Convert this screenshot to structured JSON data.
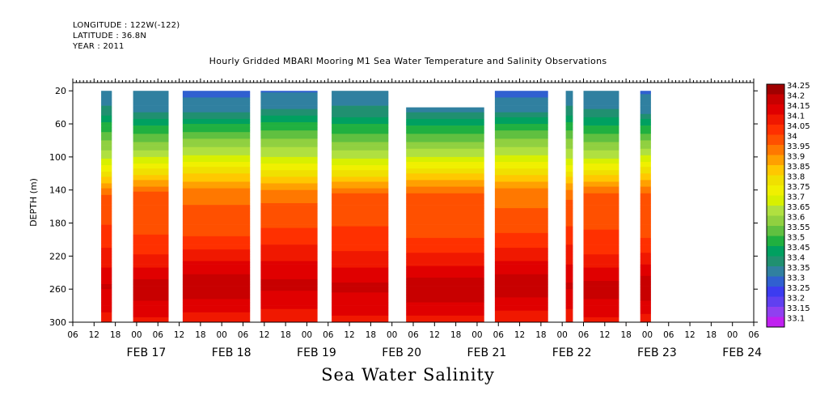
{
  "meta": {
    "longitude": "LONGITUDE : 122W(-122)",
    "latitude": "LATITUDE : 36.8N",
    "year": "YEAR : 2011"
  },
  "title": "Hourly Gridded MBARI Mooring M1 Sea Water Temperature and Salinity Observations",
  "bottom_title": "Sea Water Salinity",
  "chart_data": {
    "type": "heatmap",
    "title": "Hourly Gridded MBARI Mooring M1 Sea Water Temperature and Salinity Observations",
    "subtitle": "Sea Water Salinity",
    "xlabel": "",
    "ylabel": "DEPTH (m)",
    "y_range": [
      300,
      10
    ],
    "y_ticks": [
      20,
      60,
      100,
      140,
      180,
      220,
      260,
      300
    ],
    "x_range_hours": [
      "FEB 16 06:00",
      "FEB 24 06:00"
    ],
    "x_hour_ticks": [
      "06",
      "12",
      "18",
      "00",
      "06",
      "12",
      "18",
      "00",
      "06",
      "12",
      "18",
      "00",
      "06",
      "12",
      "18",
      "00",
      "06",
      "12",
      "18",
      "00",
      "06",
      "12",
      "18",
      "00",
      "06",
      "12",
      "18",
      "00",
      "06",
      "12",
      "18",
      "00",
      "06"
    ],
    "x_day_labels": [
      "FEB 17",
      "FEB 18",
      "FEB 19",
      "FEB 20",
      "FEB 21",
      "FEB 22",
      "FEB 23",
      "FEB 24"
    ],
    "colorbar": {
      "levels": [
        34.25,
        34.2,
        34.15,
        34.1,
        34.05,
        34,
        33.95,
        33.9,
        33.85,
        33.8,
        33.75,
        33.7,
        33.65,
        33.6,
        33.55,
        33.5,
        33.45,
        33.4,
        33.35,
        33.3,
        33.25,
        33.2,
        33.15,
        33.1
      ],
      "labels": [
        "34.25",
        "34.2",
        "34.15",
        "34.1",
        "34.05",
        "34",
        "33.95",
        "33.9",
        "33.85",
        "33.8",
        "33.75",
        "33.7",
        "33.65",
        "33.6",
        "33.55",
        "33.5",
        "33.45",
        "33.4",
        "33.35",
        "33.3",
        "33.25",
        "33.2",
        "33.15",
        "33.1"
      ],
      "colors": [
        "#a00000",
        "#c80000",
        "#e00000",
        "#f01800",
        "#ff3000",
        "#ff5000",
        "#ff7800",
        "#ffa000",
        "#ffc800",
        "#f0e000",
        "#f0f000",
        "#d8f000",
        "#b0e040",
        "#90d040",
        "#60c040",
        "#20b040",
        "#00a060",
        "#209070",
        "#3080a0",
        "#3060d0",
        "#3c3cf0",
        "#6040f0",
        "#9040f0",
        "#c020f0"
      ]
    },
    "data_segments": [
      {
        "start": "FEB 16 14:00",
        "end": "FEB 16 17:00",
        "top_depth": 20
      },
      {
        "start": "FEB 16 23:00",
        "end": "FEB 17 09:00",
        "top_depth": 20
      },
      {
        "start": "FEB 17 13:00",
        "end": "FEB 18 08:00",
        "top_depth": 20
      },
      {
        "start": "FEB 18 11:00",
        "end": "FEB 19 03:00",
        "top_depth": 20
      },
      {
        "start": "FEB 19 07:00",
        "end": "FEB 19 23:00",
        "top_depth": 20
      },
      {
        "start": "FEB 20 04:00",
        "end": "FEB 21 02:00",
        "top_depth": 40
      },
      {
        "start": "FEB 21 05:00",
        "end": "FEB 21 20:00",
        "top_depth": 20
      },
      {
        "start": "FEB 22 01:00",
        "end": "FEB 22 03:00",
        "top_depth": 20
      },
      {
        "start": "FEB 22 06:00",
        "end": "FEB 22 16:00",
        "top_depth": 20
      },
      {
        "start": "FEB 22 22:00",
        "end": "FEB 23 01:00",
        "top_depth": 20
      }
    ],
    "profile_mean": [
      {
        "depth": 20,
        "value": 33.35
      },
      {
        "depth": 45,
        "value": 33.4
      },
      {
        "depth": 60,
        "value": 33.5
      },
      {
        "depth": 80,
        "value": 33.6
      },
      {
        "depth": 100,
        "value": 33.7
      },
      {
        "depth": 115,
        "value": 33.8
      },
      {
        "depth": 130,
        "value": 33.9
      },
      {
        "depth": 145,
        "value": 34.0
      },
      {
        "depth": 180,
        "value": 34.03
      },
      {
        "depth": 200,
        "value": 34.07
      },
      {
        "depth": 220,
        "value": 34.12
      },
      {
        "depth": 240,
        "value": 34.18
      },
      {
        "depth": 255,
        "value": 34.22
      },
      {
        "depth": 270,
        "value": 34.2
      },
      {
        "depth": 300,
        "value": 34.12
      }
    ]
  }
}
